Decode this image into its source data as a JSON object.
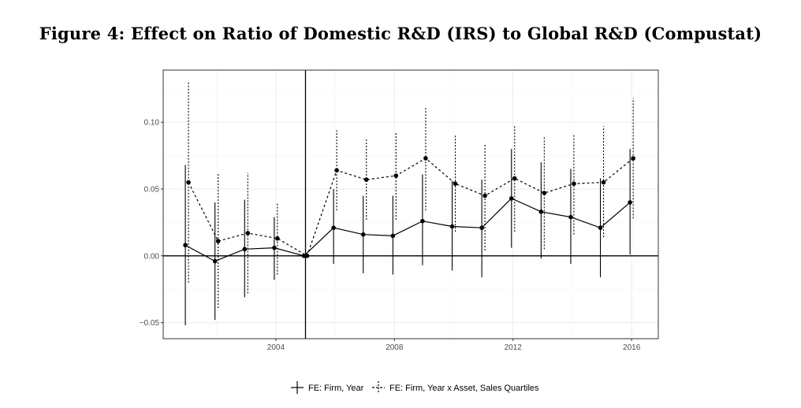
{
  "title": "Figure 4: Effect on Ratio of Domestic R&D (IRS) to Global R&D (Compustat)",
  "chart_data": {
    "type": "line",
    "title": "Figure 4: Effect on Ratio of Domestic R&D (IRS) to Global R&D (Compustat)",
    "xlabel": "",
    "ylabel": "",
    "xlim": [
      2000.2,
      2016.9
    ],
    "ylim": [
      -0.062,
      0.139
    ],
    "x_ticks": [
      "2004",
      "2008",
      "2012",
      "2016"
    ],
    "y_ticks": [
      "0.10",
      "0.05",
      "0.00",
      "−0.05"
    ],
    "grid": true,
    "reference_lines": {
      "horizontal_y": 0.0,
      "vertical_x": 2005
    },
    "legend_position": "bottom",
    "x": [
      2001,
      2002,
      2003,
      2004,
      2005,
      2006,
      2007,
      2008,
      2009,
      2010,
      2011,
      2012,
      2013,
      2014,
      2015,
      2016
    ],
    "series": [
      {
        "name": "FE: Firm, Year",
        "line_style": "solid",
        "values": [
          0.008,
          -0.004,
          0.005,
          0.006,
          0.0,
          0.021,
          0.016,
          0.015,
          0.026,
          0.022,
          0.021,
          0.043,
          0.033,
          0.029,
          0.021,
          0.04
        ],
        "ci_low": [
          -0.052,
          -0.048,
          -0.031,
          -0.018,
          0.0,
          -0.006,
          -0.013,
          -0.014,
          -0.007,
          -0.011,
          -0.016,
          0.006,
          -0.002,
          -0.006,
          -0.016,
          0.001
        ],
        "ci_high": [
          0.068,
          0.04,
          0.042,
          0.029,
          0.0,
          0.05,
          0.045,
          0.045,
          0.061,
          0.056,
          0.057,
          0.08,
          0.07,
          0.065,
          0.058,
          0.08
        ]
      },
      {
        "name": "FE: Firm, Year x Asset, Sales Quartiles",
        "line_style": "dashed",
        "values": [
          0.055,
          0.011,
          0.017,
          0.013,
          0.0,
          0.064,
          0.057,
          0.06,
          0.073,
          0.054,
          0.045,
          0.058,
          0.047,
          0.054,
          0.055,
          0.073
        ],
        "ci_low": [
          -0.02,
          -0.039,
          -0.028,
          -0.014,
          0.0,
          0.034,
          0.027,
          0.027,
          0.034,
          0.018,
          0.004,
          0.018,
          0.005,
          0.016,
          0.014,
          0.028
        ],
        "ci_high": [
          0.13,
          0.062,
          0.062,
          0.039,
          0.0,
          0.094,
          0.088,
          0.093,
          0.111,
          0.09,
          0.084,
          0.097,
          0.089,
          0.091,
          0.097,
          0.118
        ]
      }
    ]
  },
  "colors": {
    "series_color": "#000000",
    "grid_major": "#ebebeb",
    "grid_minor": "#f5f5f5",
    "panel_border": "#333333",
    "tick_text": "#4d4d4d"
  }
}
